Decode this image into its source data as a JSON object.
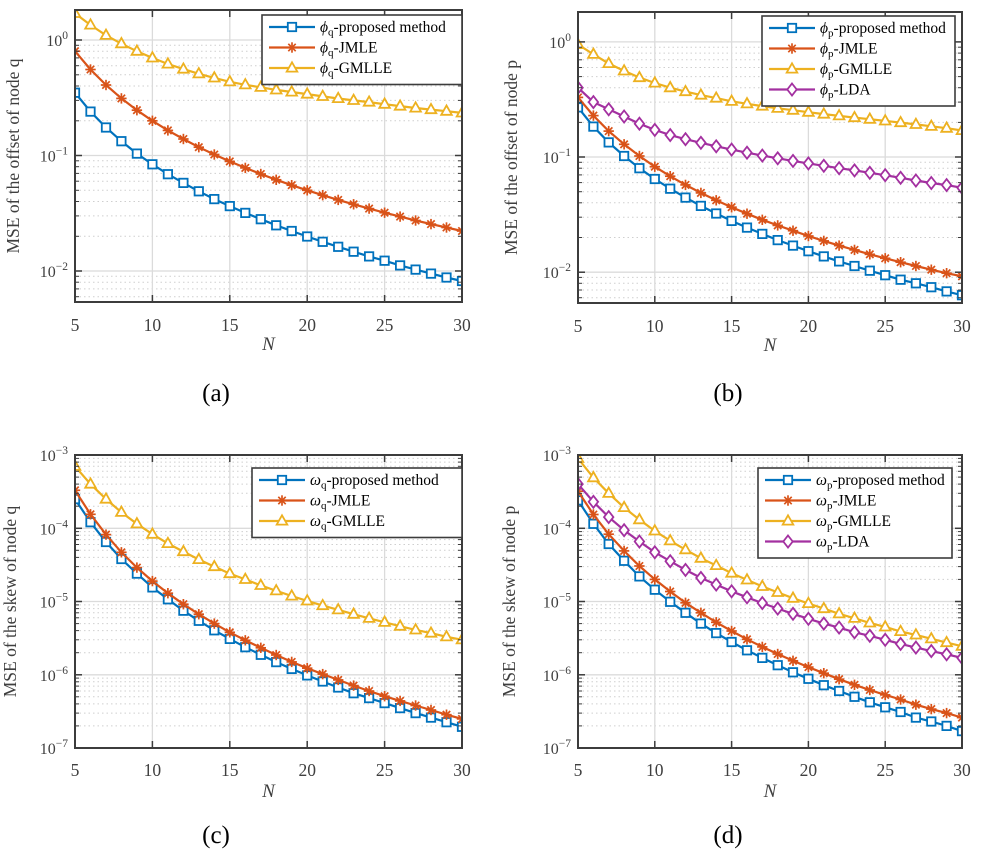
{
  "figure": {
    "captions": {
      "a": "(a)",
      "b": "(b)",
      "c": "(c)",
      "d": "(d)"
    }
  },
  "colors": {
    "proposed": "#0072BD",
    "jmle": "#D95319",
    "gmlle": "#EDB120",
    "lda": "#A330A0",
    "axis": "#3C3C3C",
    "tick_label": "#3F3F3F",
    "grid_major": "#DBDBDB",
    "grid_minor": "#CFCFCF",
    "legend_border": "#3C3C3C",
    "background": "#FFFFFF"
  },
  "chart_data": [
    {
      "id": "a",
      "type": "line",
      "caption": "(a)",
      "xlabel": "N",
      "ylabel": "MSE of the offset of node q",
      "x_scale": "linear",
      "y_scale": "log",
      "xlim": [
        5,
        30
      ],
      "xticks": [
        5,
        10,
        15,
        20,
        25,
        30
      ],
      "ylim_exp": [
        -2.268,
        0.26
      ],
      "ytick_exps": [
        0,
        -1,
        -2
      ],
      "grid": true,
      "legend_position": "top-right",
      "x": [
        5,
        6,
        7,
        8,
        9,
        10,
        11,
        12,
        13,
        14,
        15,
        16,
        17,
        18,
        19,
        20,
        21,
        22,
        23,
        24,
        25,
        26,
        27,
        28,
        29,
        30
      ],
      "series": [
        {
          "key": "proposed-method",
          "label": {
            "symbol": "ϕ",
            "sub": "q",
            "rest": "-proposed method"
          },
          "color": "#0072BD",
          "marker": "square",
          "values": [
            0.35,
            0.24,
            0.175,
            0.133,
            0.104,
            0.084,
            0.069,
            0.058,
            0.049,
            0.042,
            0.0365,
            0.0319,
            0.0281,
            0.0249,
            0.0222,
            0.0199,
            0.0179,
            0.0162,
            0.0147,
            0.0134,
            0.0123,
            0.0112,
            0.0103,
            0.0095,
            0.0088,
            0.0082
          ]
        },
        {
          "key": "jmle",
          "label": {
            "symbol": "ϕ",
            "sub": "q",
            "rest": "-JMLE"
          },
          "color": "#D95319",
          "marker": "asterisk",
          "values": [
            0.8,
            0.556,
            0.408,
            0.3125,
            0.247,
            0.2,
            0.165,
            0.139,
            0.118,
            0.102,
            0.0889,
            0.0781,
            0.0692,
            0.0617,
            0.0554,
            0.05,
            0.0454,
            0.0413,
            0.0378,
            0.0347,
            0.032,
            0.0296,
            0.0274,
            0.0255,
            0.0238,
            0.0222
          ]
        },
        {
          "key": "gmlle",
          "label": {
            "symbol": "ϕ",
            "sub": "q",
            "rest": "-GMLLE"
          },
          "color": "#EDB120",
          "marker": "triangle",
          "values": [
            1.7,
            1.35,
            1.1,
            0.93,
            0.8,
            0.7,
            0.62,
            0.56,
            0.51,
            0.47,
            0.435,
            0.41,
            0.39,
            0.37,
            0.355,
            0.34,
            0.325,
            0.312,
            0.3,
            0.29,
            0.278,
            0.268,
            0.258,
            0.25,
            0.242,
            0.234
          ]
        }
      ]
    },
    {
      "id": "b",
      "type": "line",
      "caption": "(b)",
      "xlabel": "N",
      "ylabel": "MSE of the offset of node p",
      "x_scale": "linear",
      "y_scale": "log",
      "xlim": [
        5,
        30
      ],
      "xticks": [
        5,
        10,
        15,
        20,
        25,
        30
      ],
      "ylim_exp": [
        -2.268,
        0.26
      ],
      "ytick_exps": [
        0,
        -1,
        -2
      ],
      "grid": true,
      "legend_position": "top-right",
      "x": [
        5,
        6,
        7,
        8,
        9,
        10,
        11,
        12,
        13,
        14,
        15,
        16,
        17,
        18,
        19,
        20,
        21,
        22,
        23,
        24,
        25,
        26,
        27,
        28,
        29,
        30
      ],
      "series": [
        {
          "key": "proposed-method",
          "label": {
            "symbol": "ϕ",
            "sub": "p",
            "rest": "-proposed method"
          },
          "color": "#0072BD",
          "marker": "square",
          "values": [
            0.27,
            0.184,
            0.134,
            0.102,
            0.08,
            0.0645,
            0.0531,
            0.0444,
            0.0376,
            0.0323,
            0.0279,
            0.0244,
            0.0215,
            0.019,
            0.017,
            0.0152,
            0.0137,
            0.0124,
            0.0113,
            0.0103,
            0.0094,
            0.0086,
            0.008,
            0.0074,
            0.0068,
            0.0063
          ]
        },
        {
          "key": "jmle",
          "label": {
            "symbol": "ϕ",
            "sub": "p",
            "rest": "-JMLE"
          },
          "color": "#D95319",
          "marker": "asterisk",
          "values": [
            0.33,
            0.229,
            0.168,
            0.129,
            0.102,
            0.0825,
            0.0682,
            0.0573,
            0.0488,
            0.0421,
            0.0367,
            0.0322,
            0.0285,
            0.0255,
            0.0229,
            0.0206,
            0.0187,
            0.017,
            0.0156,
            0.0143,
            0.0132,
            0.0122,
            0.0113,
            0.0105,
            0.0098,
            0.0092
          ]
        },
        {
          "key": "gmlle",
          "label": {
            "symbol": "ϕ",
            "sub": "p",
            "rest": "-GMLLE"
          },
          "color": "#EDB120",
          "marker": "triangle",
          "values": [
            0.95,
            0.78,
            0.65,
            0.56,
            0.49,
            0.44,
            0.4,
            0.37,
            0.345,
            0.325,
            0.305,
            0.29,
            0.277,
            0.265,
            0.255,
            0.245,
            0.236,
            0.228,
            0.22,
            0.213,
            0.206,
            0.199,
            0.192,
            0.185,
            0.178,
            0.17
          ]
        },
        {
          "key": "lda",
          "label": {
            "symbol": "ϕ",
            "sub": "p",
            "rest": "-LDA"
          },
          "color": "#A330A0",
          "marker": "diamond",
          "values": [
            0.4,
            0.3,
            0.26,
            0.225,
            0.195,
            0.172,
            0.155,
            0.143,
            0.133,
            0.124,
            0.116,
            0.109,
            0.103,
            0.0975,
            0.0925,
            0.088,
            0.084,
            0.08,
            0.0765,
            0.073,
            0.0695,
            0.066,
            0.0625,
            0.0595,
            0.057,
            0.054
          ]
        }
      ]
    },
    {
      "id": "c",
      "type": "line",
      "caption": "(c)",
      "xlabel": "N",
      "ylabel": "MSE of the skew of node q",
      "x_scale": "linear",
      "y_scale": "log",
      "xlim": [
        5,
        30
      ],
      "xticks": [
        5,
        10,
        15,
        20,
        25,
        30
      ],
      "ylim_exp": [
        -7,
        -3
      ],
      "ytick_exps": [
        -3,
        -4,
        -5,
        -6,
        -7
      ],
      "grid": true,
      "legend_position": "top-right",
      "x": [
        5,
        6,
        7,
        8,
        9,
        10,
        11,
        12,
        13,
        14,
        15,
        16,
        17,
        18,
        19,
        20,
        21,
        22,
        23,
        24,
        25,
        26,
        27,
        28,
        29,
        30
      ],
      "series": [
        {
          "key": "proposed-method",
          "label": {
            "symbol": "ω",
            "sub": "q",
            "rest": "-proposed method"
          },
          "color": "#0072BD",
          "marker": "square",
          "values": [
            0.00025,
            0.000121,
            6.5e-05,
            3.8e-05,
            2.4e-05,
            1.56e-05,
            1.07e-05,
            7.5e-06,
            5.45e-06,
            4.05e-06,
            3.09e-06,
            2.38e-06,
            1.87e-06,
            1.49e-06,
            1.2e-06,
            9.8e-07,
            8.1e-07,
            6.7e-07,
            5.6e-07,
            4.8e-07,
            4.1e-07,
            3.5e-07,
            3e-07,
            2.6e-07,
            2.25e-07,
            1.95e-07
          ]
        },
        {
          "key": "jmle",
          "label": {
            "symbol": "ω",
            "sub": "q",
            "rest": "-JMLE"
          },
          "color": "#D95319",
          "marker": "asterisk",
          "values": [
            0.00033,
            0.000155,
            8.2e-05,
            4.7e-05,
            2.9e-05,
            1.9e-05,
            1.3e-05,
            9.2e-06,
            6.7e-06,
            5e-06,
            3.8e-06,
            2.95e-06,
            2.33e-06,
            1.86e-06,
            1.5e-06,
            1.23e-06,
            1.02e-06,
            8.5e-07,
            7.1e-07,
            6e-07,
            5.1e-07,
            4.4e-07,
            3.8e-07,
            3.3e-07,
            2.85e-07,
            2.5e-07
          ]
        },
        {
          "key": "gmlle",
          "label": {
            "symbol": "ω",
            "sub": "q",
            "rest": "-GMLLE"
          },
          "color": "#EDB120",
          "marker": "triangle",
          "values": [
            0.0007,
            0.0004,
            0.00025,
            0.000165,
            0.000115,
            8.3e-05,
            6.2e-05,
            4.8e-05,
            3.75e-05,
            3e-05,
            2.4e-05,
            2e-05,
            1.66e-05,
            1.4e-05,
            1.19e-05,
            1.02e-05,
            8.8e-06,
            7.7e-06,
            6.7e-06,
            5.9e-06,
            5.2e-06,
            4.6e-06,
            4.1e-06,
            3.7e-06,
            3.3e-06,
            3e-06
          ]
        }
      ]
    },
    {
      "id": "d",
      "type": "line",
      "caption": "(d)",
      "xlabel": "N",
      "ylabel": "MSE of the skew of node p",
      "x_scale": "linear",
      "y_scale": "log",
      "xlim": [
        5,
        30
      ],
      "xticks": [
        5,
        10,
        15,
        20,
        25,
        30
      ],
      "ylim_exp": [
        -7,
        -3
      ],
      "ytick_exps": [
        -3,
        -4,
        -5,
        -6,
        -7
      ],
      "grid": true,
      "legend_position": "top-right",
      "x": [
        5,
        6,
        7,
        8,
        9,
        10,
        11,
        12,
        13,
        14,
        15,
        16,
        17,
        18,
        19,
        20,
        21,
        22,
        23,
        24,
        25,
        26,
        27,
        28,
        29,
        30
      ],
      "series": [
        {
          "key": "proposed-method",
          "label": {
            "symbol": "ω",
            "sub": "p",
            "rest": "-proposed method"
          },
          "color": "#0072BD",
          "marker": "square",
          "values": [
            0.00024,
            0.000115,
            6.1e-05,
            3.6e-05,
            2.2e-05,
            1.45e-05,
            9.9e-06,
            7e-06,
            5e-06,
            3.7e-06,
            2.8e-06,
            2.16e-06,
            1.7e-06,
            1.35e-06,
            1.08e-06,
            8.8e-07,
            7.2e-07,
            6e-07,
            5e-07,
            4.2e-07,
            3.6e-07,
            3.1e-07,
            2.6e-07,
            2.3e-07,
            2e-07,
            1.7e-07
          ]
        },
        {
          "key": "jmle",
          "label": {
            "symbol": "ω",
            "sub": "p",
            "rest": "-JMLE"
          },
          "color": "#D95319",
          "marker": "asterisk",
          "values": [
            0.00032,
            0.000154,
            8.3e-05,
            4.9e-05,
            3.05e-05,
            2e-05,
            1.37e-05,
            9.6e-06,
            7e-06,
            5.2e-06,
            3.95e-06,
            3.05e-06,
            2.4e-06,
            1.92e-06,
            1.55e-06,
            1.27e-06,
            1.05e-06,
            8.7e-07,
            7.3e-07,
            6.2e-07,
            5.3e-07,
            4.6e-07,
            3.9e-07,
            3.4e-07,
            3e-07,
            2.6e-07
          ]
        },
        {
          "key": "gmlle",
          "label": {
            "symbol": "ω",
            "sub": "p",
            "rest": "-GMLLE"
          },
          "color": "#EDB120",
          "marker": "triangle",
          "values": [
            0.0009,
            0.00049,
            0.0003,
            0.000192,
            0.000131,
            9.2e-05,
            6.75e-05,
            5.1e-05,
            3.9e-05,
            3.1e-05,
            2.44e-05,
            1.97e-05,
            1.61e-05,
            1.33e-05,
            1.11e-05,
            9.4e-06,
            8e-06,
            6.8e-06,
            5.9e-06,
            5.1e-06,
            4.5e-06,
            3.9e-06,
            3.5e-06,
            3.1e-06,
            2.75e-06,
            2.45e-06
          ]
        },
        {
          "key": "lda",
          "label": {
            "symbol": "ω",
            "sub": "p",
            "rest": "-LDA"
          },
          "color": "#A330A0",
          "marker": "diamond",
          "values": [
            0.0004,
            0.00023,
            0.000142,
            9.4e-05,
            6.6e-05,
            4.7e-05,
            3.55e-05,
            2.7e-05,
            2.1e-05,
            1.7e-05,
            1.38e-05,
            1.14e-05,
            9.5e-06,
            8e-06,
            6.8e-06,
            5.8e-06,
            5e-06,
            4.4e-06,
            3.8e-06,
            3.4e-06,
            3e-06,
            2.64e-06,
            2.35e-06,
            2.1e-06,
            1.9e-06,
            1.7e-06
          ]
        }
      ]
    }
  ]
}
